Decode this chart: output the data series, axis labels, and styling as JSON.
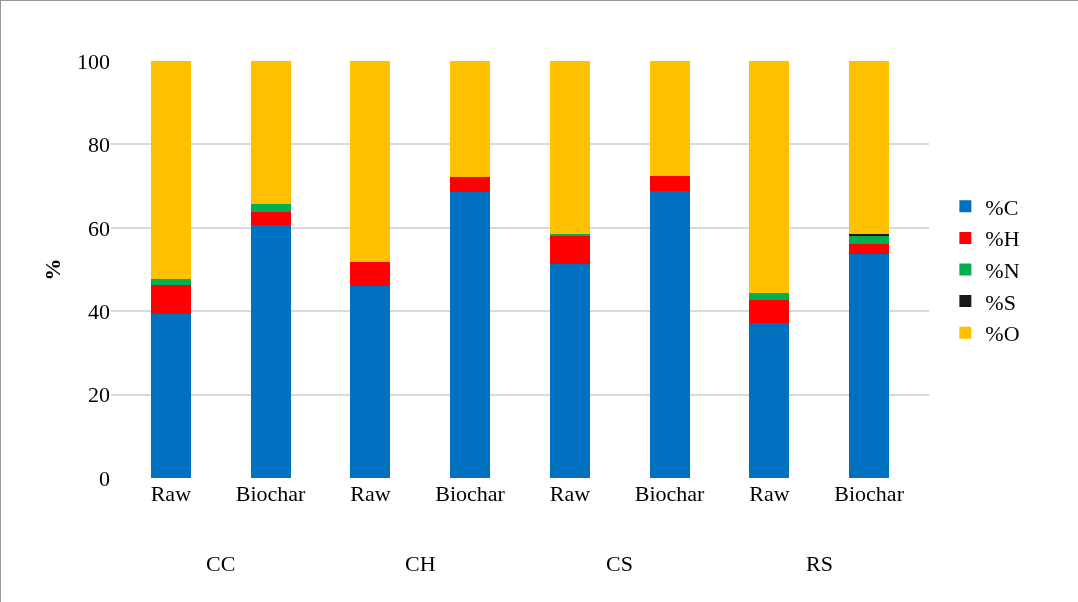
{
  "chart_data": {
    "type": "bar",
    "stacked": true,
    "ylabel": "%",
    "categories": [
      "Raw",
      "Biochar",
      "Raw",
      "Biochar",
      "Raw",
      "Biochar",
      "Raw",
      "Biochar"
    ],
    "series": [
      {
        "name": "%C",
        "color": "#0070c0",
        "values": [
          39.4,
          60.6,
          46.0,
          68.7,
          51.3,
          68.9,
          37.2,
          53.8
        ]
      },
      {
        "name": "%H",
        "color": "#ff0000",
        "values": [
          6.8,
          3.2,
          5.9,
          3.4,
          6.8,
          3.6,
          5.6,
          2.3
        ]
      },
      {
        "name": "%N",
        "color": "#00b050",
        "values": [
          1.5,
          2.0,
          0,
          0,
          0.5,
          0,
          1.5,
          2.0
        ]
      },
      {
        "name": "%S",
        "color": "#1a1a1a",
        "values": [
          0,
          0,
          0,
          0,
          0,
          0,
          0,
          0.4
        ]
      },
      {
        "name": "%O",
        "color": "#ffc000",
        "values": [
          52.3,
          34.2,
          48.1,
          27.9,
          41.4,
          27.5,
          55.7,
          41.5
        ]
      }
    ],
    "ylim": [
      0,
      100
    ],
    "yticks": [
      0,
      20,
      40,
      60,
      80,
      100
    ],
    "grid": "y",
    "legend": "right",
    "annotations": [
      "CC",
      "CH",
      "CS",
      "RS"
    ]
  }
}
